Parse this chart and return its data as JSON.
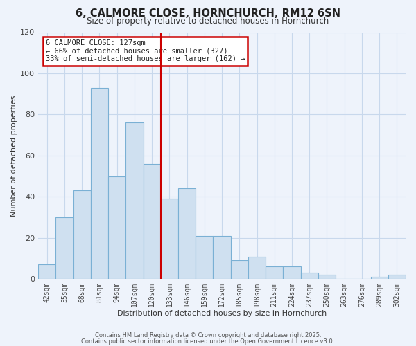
{
  "title": "6, CALMORE CLOSE, HORNCHURCH, RM12 6SN",
  "subtitle": "Size of property relative to detached houses in Hornchurch",
  "xlabel": "Distribution of detached houses by size in Hornchurch",
  "ylabel": "Number of detached properties",
  "bar_labels": [
    "42sqm",
    "55sqm",
    "68sqm",
    "81sqm",
    "94sqm",
    "107sqm",
    "120sqm",
    "133sqm",
    "146sqm",
    "159sqm",
    "172sqm",
    "185sqm",
    "198sqm",
    "211sqm",
    "224sqm",
    "237sqm",
    "250sqm",
    "263sqm",
    "276sqm",
    "289sqm",
    "302sqm"
  ],
  "bar_values": [
    7,
    30,
    43,
    93,
    50,
    76,
    56,
    39,
    44,
    21,
    21,
    9,
    11,
    6,
    6,
    3,
    2,
    0,
    0,
    1,
    2
  ],
  "bar_color": "#cfe0f0",
  "bar_edge_color": "#7ab0d4",
  "vline_x_index": 6.5,
  "vline_color": "#cc0000",
  "annotation_title": "6 CALMORE CLOSE: 127sqm",
  "annotation_line1": "← 66% of detached houses are smaller (327)",
  "annotation_line2": "33% of semi-detached houses are larger (162) →",
  "annotation_box_color": "#ffffff",
  "annotation_box_edge_color": "#cc0000",
  "ylim": [
    0,
    120
  ],
  "yticks": [
    0,
    20,
    40,
    60,
    80,
    100,
    120
  ],
  "footer1": "Contains HM Land Registry data © Crown copyright and database right 2025.",
  "footer2": "Contains public sector information licensed under the Open Government Licence v3.0.",
  "background_color": "#eef3fb",
  "grid_color": "#c8d8ec"
}
